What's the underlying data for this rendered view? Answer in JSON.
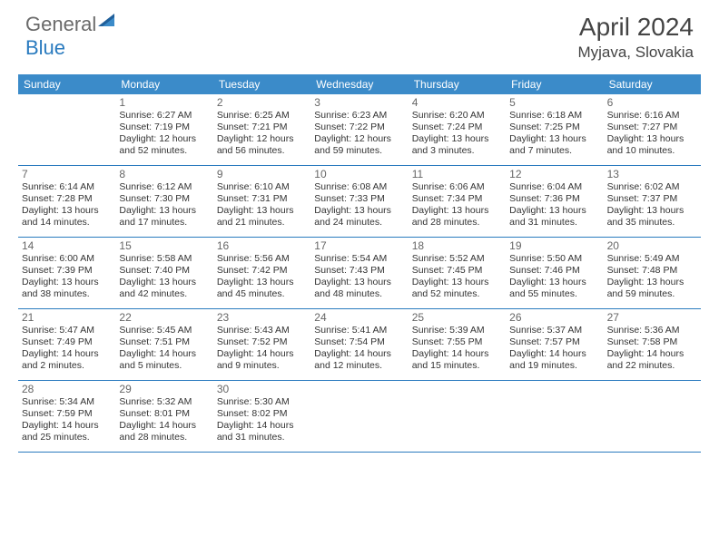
{
  "logo": {
    "part1": "General",
    "part2": "Blue"
  },
  "title": "April 2024",
  "location": "Myjava, Slovakia",
  "colors": {
    "header_bg": "#3b8bc9",
    "header_text": "#ffffff",
    "border": "#2a7bbf",
    "logo_gray": "#6a6a6a",
    "logo_blue": "#2a7bbf",
    "text": "#333333",
    "daynum": "#666666",
    "background": "#ffffff"
  },
  "weekdays": [
    "Sunday",
    "Monday",
    "Tuesday",
    "Wednesday",
    "Thursday",
    "Friday",
    "Saturday"
  ],
  "weeks": [
    [
      null,
      {
        "n": "1",
        "sr": "6:27 AM",
        "ss": "7:19 PM",
        "dl": "12 hours and 52 minutes."
      },
      {
        "n": "2",
        "sr": "6:25 AM",
        "ss": "7:21 PM",
        "dl": "12 hours and 56 minutes."
      },
      {
        "n": "3",
        "sr": "6:23 AM",
        "ss": "7:22 PM",
        "dl": "12 hours and 59 minutes."
      },
      {
        "n": "4",
        "sr": "6:20 AM",
        "ss": "7:24 PM",
        "dl": "13 hours and 3 minutes."
      },
      {
        "n": "5",
        "sr": "6:18 AM",
        "ss": "7:25 PM",
        "dl": "13 hours and 7 minutes."
      },
      {
        "n": "6",
        "sr": "6:16 AM",
        "ss": "7:27 PM",
        "dl": "13 hours and 10 minutes."
      }
    ],
    [
      {
        "n": "7",
        "sr": "6:14 AM",
        "ss": "7:28 PM",
        "dl": "13 hours and 14 minutes."
      },
      {
        "n": "8",
        "sr": "6:12 AM",
        "ss": "7:30 PM",
        "dl": "13 hours and 17 minutes."
      },
      {
        "n": "9",
        "sr": "6:10 AM",
        "ss": "7:31 PM",
        "dl": "13 hours and 21 minutes."
      },
      {
        "n": "10",
        "sr": "6:08 AM",
        "ss": "7:33 PM",
        "dl": "13 hours and 24 minutes."
      },
      {
        "n": "11",
        "sr": "6:06 AM",
        "ss": "7:34 PM",
        "dl": "13 hours and 28 minutes."
      },
      {
        "n": "12",
        "sr": "6:04 AM",
        "ss": "7:36 PM",
        "dl": "13 hours and 31 minutes."
      },
      {
        "n": "13",
        "sr": "6:02 AM",
        "ss": "7:37 PM",
        "dl": "13 hours and 35 minutes."
      }
    ],
    [
      {
        "n": "14",
        "sr": "6:00 AM",
        "ss": "7:39 PM",
        "dl": "13 hours and 38 minutes."
      },
      {
        "n": "15",
        "sr": "5:58 AM",
        "ss": "7:40 PM",
        "dl": "13 hours and 42 minutes."
      },
      {
        "n": "16",
        "sr": "5:56 AM",
        "ss": "7:42 PM",
        "dl": "13 hours and 45 minutes."
      },
      {
        "n": "17",
        "sr": "5:54 AM",
        "ss": "7:43 PM",
        "dl": "13 hours and 48 minutes."
      },
      {
        "n": "18",
        "sr": "5:52 AM",
        "ss": "7:45 PM",
        "dl": "13 hours and 52 minutes."
      },
      {
        "n": "19",
        "sr": "5:50 AM",
        "ss": "7:46 PM",
        "dl": "13 hours and 55 minutes."
      },
      {
        "n": "20",
        "sr": "5:49 AM",
        "ss": "7:48 PM",
        "dl": "13 hours and 59 minutes."
      }
    ],
    [
      {
        "n": "21",
        "sr": "5:47 AM",
        "ss": "7:49 PM",
        "dl": "14 hours and 2 minutes."
      },
      {
        "n": "22",
        "sr": "5:45 AM",
        "ss": "7:51 PM",
        "dl": "14 hours and 5 minutes."
      },
      {
        "n": "23",
        "sr": "5:43 AM",
        "ss": "7:52 PM",
        "dl": "14 hours and 9 minutes."
      },
      {
        "n": "24",
        "sr": "5:41 AM",
        "ss": "7:54 PM",
        "dl": "14 hours and 12 minutes."
      },
      {
        "n": "25",
        "sr": "5:39 AM",
        "ss": "7:55 PM",
        "dl": "14 hours and 15 minutes."
      },
      {
        "n": "26",
        "sr": "5:37 AM",
        "ss": "7:57 PM",
        "dl": "14 hours and 19 minutes."
      },
      {
        "n": "27",
        "sr": "5:36 AM",
        "ss": "7:58 PM",
        "dl": "14 hours and 22 minutes."
      }
    ],
    [
      {
        "n": "28",
        "sr": "5:34 AM",
        "ss": "7:59 PM",
        "dl": "14 hours and 25 minutes."
      },
      {
        "n": "29",
        "sr": "5:32 AM",
        "ss": "8:01 PM",
        "dl": "14 hours and 28 minutes."
      },
      {
        "n": "30",
        "sr": "5:30 AM",
        "ss": "8:02 PM",
        "dl": "14 hours and 31 minutes."
      },
      null,
      null,
      null,
      null
    ]
  ],
  "labels": {
    "sunrise": "Sunrise: ",
    "sunset": "Sunset: ",
    "daylight": "Daylight: "
  }
}
